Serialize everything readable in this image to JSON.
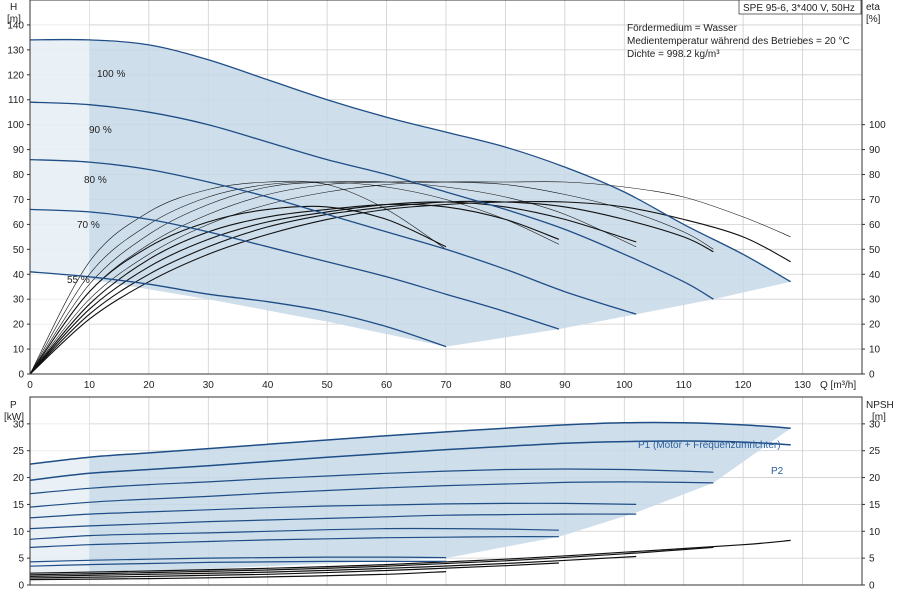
{
  "chart_data": [
    {
      "type": "line",
      "panel": "head",
      "title": "SPE 95-6, 3*400 V, 50Hz",
      "notes": [
        "Fördermedium = Wasser",
        "Medientemperatur während des Betriebes = 20 °C",
        "Dichte = 998.2 kg/m³"
      ],
      "ylabel": [
        "H",
        "[m]"
      ],
      "y2label": [
        "eta",
        "[%]"
      ],
      "xlabel": "Q [m³/h]",
      "xlim": [
        0,
        140
      ],
      "ylim": [
        0,
        150
      ],
      "y2lim": [
        0,
        150
      ],
      "xticks": [
        0,
        10,
        20,
        30,
        40,
        50,
        60,
        70,
        80,
        90,
        100,
        110,
        120,
        130
      ],
      "yticks": [
        0,
        10,
        20,
        30,
        40,
        50,
        60,
        70,
        80,
        90,
        100,
        110,
        120,
        130,
        140
      ],
      "y2ticks": [
        0,
        10,
        20,
        30,
        40,
        50,
        60,
        70,
        80,
        90,
        100
      ],
      "grid": true,
      "envelope": [
        [
          0,
          134
        ],
        [
          10,
          134
        ],
        [
          20,
          132
        ],
        [
          30,
          126
        ],
        [
          40,
          118
        ],
        [
          50,
          110
        ],
        [
          60,
          103
        ],
        [
          70,
          97
        ],
        [
          80,
          91
        ],
        [
          90,
          83
        ],
        [
          100,
          73
        ],
        [
          110,
          60
        ],
        [
          120,
          48
        ],
        [
          128,
          37
        ],
        [
          115,
          30
        ],
        [
          102,
          24
        ],
        [
          89,
          18
        ],
        [
          70,
          11
        ],
        [
          50,
          21
        ],
        [
          30,
          30
        ],
        [
          10,
          38
        ],
        [
          0,
          41
        ]
      ],
      "series": [
        {
          "name": "100 %",
          "x": [
            0,
            10,
            20,
            30,
            40,
            50,
            60,
            70,
            80,
            90,
            100,
            110,
            120,
            128
          ],
          "y": [
            134,
            134,
            132,
            126,
            118,
            110,
            103,
            97,
            91,
            83,
            73,
            60,
            48,
            37
          ]
        },
        {
          "name": "90 %",
          "x": [
            0,
            10,
            20,
            30,
            40,
            50,
            60,
            70,
            80,
            90,
            100,
            110,
            115
          ],
          "y": [
            109,
            108,
            105,
            100,
            93,
            86,
            80,
            73,
            66,
            58,
            48,
            37,
            30
          ]
        },
        {
          "name": "80 %",
          "x": [
            0,
            10,
            20,
            30,
            40,
            50,
            60,
            70,
            80,
            90,
            102
          ],
          "y": [
            86,
            85,
            82,
            77,
            71,
            64,
            57,
            50,
            42,
            33,
            24
          ]
        },
        {
          "name": "70 %",
          "x": [
            0,
            10,
            20,
            30,
            40,
            50,
            60,
            70,
            80,
            89
          ],
          "y": [
            66,
            65,
            62,
            57,
            51,
            45,
            39,
            32,
            25,
            18
          ]
        },
        {
          "name": "55 %",
          "x": [
            0,
            10,
            20,
            30,
            40,
            50,
            60,
            70
          ],
          "y": [
            41,
            39,
            36,
            32,
            29,
            25,
            19,
            11
          ]
        }
      ],
      "efficiency_series": [
        {
          "x": [
            0,
            10,
            20,
            30,
            40,
            50,
            60,
            70,
            80,
            90,
            100,
            110,
            120,
            128
          ],
          "y": [
            0,
            22,
            37,
            48,
            56,
            62,
            66,
            68,
            69,
            69,
            67,
            62,
            55,
            45
          ]
        },
        {
          "x": [
            0,
            10,
            20,
            30,
            40,
            50,
            60,
            70,
            80,
            90,
            100,
            110,
            115
          ],
          "y": [
            0,
            24,
            40,
            51,
            59,
            64,
            67,
            69,
            69,
            67,
            62,
            55,
            49
          ]
        },
        {
          "x": [
            0,
            10,
            20,
            30,
            40,
            50,
            60,
            70,
            80,
            90,
            102
          ],
          "y": [
            0,
            26,
            43,
            54,
            61,
            65,
            68,
            69,
            67,
            62,
            53
          ]
        },
        {
          "x": [
            0,
            10,
            20,
            30,
            40,
            50,
            60,
            70,
            80,
            89
          ],
          "y": [
            0,
            28,
            46,
            57,
            63,
            66,
            68,
            67,
            62,
            54
          ]
        },
        {
          "x": [
            0,
            10,
            20,
            30,
            40,
            50,
            60,
            70
          ],
          "y": [
            0,
            33,
            51,
            61,
            66,
            67,
            62,
            51
          ]
        },
        {
          "x": [
            0,
            10,
            20,
            30,
            40,
            50,
            60,
            70,
            80,
            90,
            100,
            110,
            120,
            128
          ],
          "y": [
            0,
            30,
            48,
            60,
            68,
            73,
            76,
            77,
            77,
            77,
            75,
            71,
            63,
            55
          ]
        },
        {
          "x": [
            0,
            10,
            20,
            30,
            40,
            50,
            60,
            70,
            80,
            90,
            100,
            110,
            115
          ],
          "y": [
            0,
            33,
            52,
            64,
            72,
            76,
            77,
            77,
            76,
            72,
            66,
            57,
            50
          ]
        },
        {
          "x": [
            0,
            10,
            20,
            30,
            40,
            50,
            60,
            70,
            80,
            90,
            102
          ],
          "y": [
            0,
            36,
            56,
            68,
            75,
            77,
            77,
            75,
            71,
            64,
            51
          ]
        },
        {
          "x": [
            0,
            10,
            20,
            30,
            40,
            50,
            60,
            70,
            80,
            89
          ],
          "y": [
            0,
            40,
            60,
            71,
            76,
            77,
            75,
            70,
            62,
            52
          ]
        },
        {
          "x": [
            0,
            10,
            20,
            30,
            40,
            50,
            60,
            70
          ],
          "y": [
            0,
            45,
            65,
            74,
            77,
            76,
            66,
            50
          ]
        }
      ]
    },
    {
      "type": "line",
      "panel": "power",
      "ylabel": [
        "P",
        "[kW]"
      ],
      "y2label": [
        "NPSH",
        "[m]"
      ],
      "xlim": [
        0,
        140
      ],
      "ylim": [
        0,
        35
      ],
      "y2lim": [
        0,
        35
      ],
      "yticks": [
        0,
        5,
        10,
        15,
        20,
        25,
        30
      ],
      "y2ticks": [
        0,
        5,
        10,
        15,
        20,
        25,
        30
      ],
      "grid": true,
      "envelope": [
        [
          0,
          22.5
        ],
        [
          10,
          23.8
        ],
        [
          20,
          24.6
        ],
        [
          30,
          25.4
        ],
        [
          40,
          26.2
        ],
        [
          50,
          27
        ],
        [
          60,
          27.8
        ],
        [
          70,
          28.5
        ],
        [
          80,
          29.2
        ],
        [
          90,
          29.8
        ],
        [
          100,
          30.2
        ],
        [
          110,
          30.2
        ],
        [
          120,
          29.8
        ],
        [
          128,
          29.2
        ],
        [
          115,
          19
        ],
        [
          102,
          13.5
        ],
        [
          89,
          9
        ],
        [
          70,
          5
        ],
        [
          50,
          4
        ],
        [
          30,
          3
        ],
        [
          10,
          2.2
        ],
        [
          0,
          2
        ]
      ],
      "series": [
        {
          "name": "P1 (Motor + Frequenzumrichter)",
          "x": [
            0,
            10,
            20,
            30,
            40,
            50,
            60,
            70,
            80,
            90,
            100,
            110,
            120,
            128
          ],
          "y": [
            22.5,
            23.8,
            24.6,
            25.4,
            26.2,
            27,
            27.8,
            28.5,
            29.2,
            29.8,
            30.2,
            30.2,
            29.8,
            29.2
          ]
        },
        {
          "name": "P2",
          "x": [
            0,
            10,
            20,
            30,
            40,
            50,
            60,
            70,
            80,
            90,
            100,
            110,
            120,
            128
          ],
          "y": [
            19.5,
            20.8,
            21.5,
            22.2,
            23,
            23.8,
            24.5,
            25.2,
            25.8,
            26.4,
            26.7,
            26.8,
            26.6,
            26.1
          ]
        }
      ],
      "power_series": [
        {
          "x": [
            0,
            10,
            20,
            30,
            40,
            50,
            60,
            70,
            80,
            90,
            100,
            110,
            115
          ],
          "y": [
            17,
            18,
            18.7,
            19.2,
            19.8,
            20.3,
            20.8,
            21.2,
            21.5,
            21.6,
            21.5,
            21.2,
            21
          ]
        },
        {
          "x": [
            0,
            10,
            20,
            30,
            40,
            50,
            60,
            70,
            80,
            90,
            100,
            110,
            115
          ],
          "y": [
            14.5,
            15.4,
            16,
            16.5,
            17.1,
            17.6,
            18.1,
            18.5,
            18.8,
            19.1,
            19.2,
            19.1,
            19
          ]
        },
        {
          "x": [
            0,
            10,
            20,
            30,
            40,
            50,
            60,
            70,
            80,
            90,
            102
          ],
          "y": [
            12.5,
            13.2,
            13.6,
            14,
            14.4,
            14.7,
            14.9,
            15.1,
            15.2,
            15.2,
            15
          ]
        },
        {
          "x": [
            0,
            10,
            20,
            30,
            40,
            50,
            60,
            70,
            80,
            90,
            102
          ],
          "y": [
            10.5,
            11,
            11.4,
            11.8,
            12.1,
            12.4,
            12.7,
            13,
            13.1,
            13.2,
            13.2
          ]
        },
        {
          "x": [
            0,
            10,
            20,
            30,
            40,
            50,
            60,
            70,
            80,
            89
          ],
          "y": [
            8.5,
            9.2,
            9.5,
            9.7,
            10,
            10.3,
            10.5,
            10.5,
            10.4,
            10.2
          ]
        },
        {
          "x": [
            0,
            10,
            20,
            30,
            40,
            50,
            60,
            70,
            80,
            89
          ],
          "y": [
            7,
            7.5,
            7.8,
            8.1,
            8.4,
            8.6,
            8.8,
            8.9,
            9,
            9
          ]
        },
        {
          "x": [
            0,
            10,
            20,
            30,
            40,
            50,
            60,
            70
          ],
          "y": [
            4.3,
            4.6,
            4.8,
            5,
            5.1,
            5.2,
            5.2,
            5.1
          ]
        },
        {
          "x": [
            0,
            10,
            20,
            30,
            40,
            50,
            60,
            70
          ],
          "y": [
            3.5,
            3.8,
            4,
            4.2,
            4.3,
            4.4,
            4.4,
            4.4
          ]
        }
      ],
      "npsh_series": [
        {
          "x": [
            0,
            20,
            40,
            60,
            70
          ],
          "y": [
            1,
            1.2,
            1.5,
            2,
            2.5
          ]
        },
        {
          "x": [
            0,
            20,
            40,
            60,
            80,
            89
          ],
          "y": [
            1.3,
            1.6,
            2,
            2.7,
            3.6,
            4.1
          ]
        },
        {
          "x": [
            0,
            20,
            40,
            60,
            80,
            102
          ],
          "y": [
            1.6,
            2,
            2.4,
            3.1,
            4,
            5.3
          ]
        },
        {
          "x": [
            0,
            20,
            40,
            60,
            80,
            100,
            115
          ],
          "y": [
            1.9,
            2.3,
            2.8,
            3.5,
            4.5,
            5.8,
            7
          ]
        },
        {
          "x": [
            0,
            20,
            40,
            60,
            80,
            100,
            120,
            128
          ],
          "y": [
            2.2,
            2.6,
            3.1,
            3.8,
            4.8,
            6.1,
            7.5,
            8.3
          ]
        }
      ]
    }
  ]
}
